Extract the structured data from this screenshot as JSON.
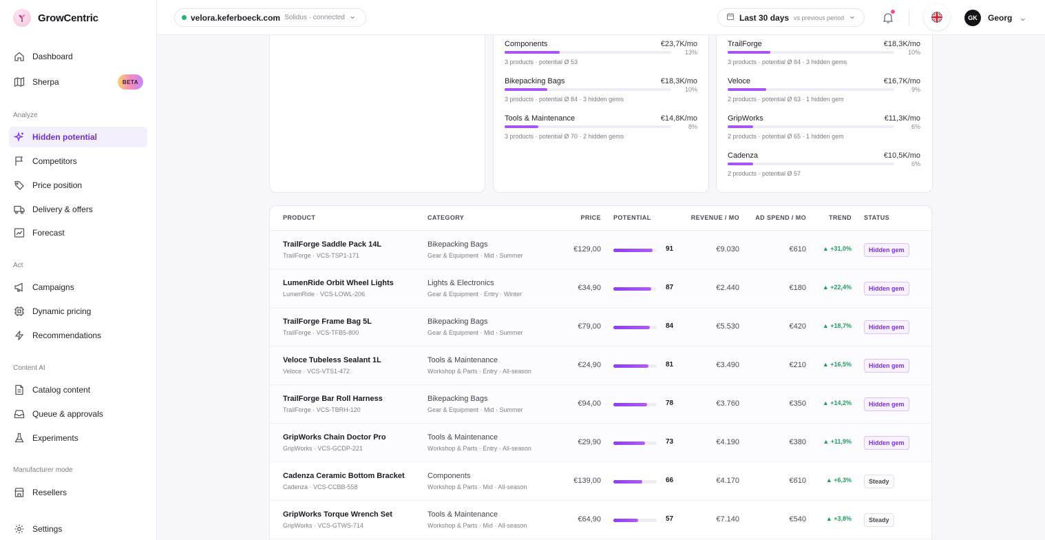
{
  "app": {
    "name": "GrowCentric"
  },
  "nav": {
    "dashboard": "Dashboard",
    "sherpa": "Sherpa",
    "beta": "BETA",
    "analyze": "Analyze",
    "hidden_potential": "Hidden potential",
    "competitors": "Competitors",
    "price_position": "Price position",
    "delivery": "Delivery & offers",
    "forecast": "Forecast",
    "act": "Act",
    "campaigns": "Campaigns",
    "dynamic_pricing": "Dynamic pricing",
    "recommendations": "Recommendations",
    "content_ai": "Content AI",
    "catalog": "Catalog content",
    "queue": "Queue & approvals",
    "experiments": "Experiments",
    "manufacturer": "Manufacturer mode",
    "resellers": "Resellers",
    "settings": "Settings"
  },
  "topbar": {
    "store": "velora.keferboeck.com",
    "store_meta": "Solidus · connected",
    "date_range": "Last 30 days",
    "date_compare": "vs previous period",
    "avatar_initials": "GK",
    "user_name": "Georg"
  },
  "categories_panel": [
    {
      "name": "Components",
      "value": "€23,7K/mo",
      "pct": "13%",
      "fill": 0.13,
      "sub": "3 products · potential Ø 53"
    },
    {
      "name": "Bikepacking Bags",
      "value": "€18,3K/mo",
      "pct": "10%",
      "fill": 0.1,
      "sub": "3 products · potential Ø 84 · 3 hidden gems"
    },
    {
      "name": "Tools & Maintenance",
      "value": "€14,8K/mo",
      "pct": "8%",
      "fill": 0.08,
      "sub": "3 products · potential Ø 70 · 2 hidden gems"
    }
  ],
  "brands_panel": [
    {
      "name": "TrailForge",
      "value": "€18,3K/mo",
      "pct": "10%",
      "fill": 0.1,
      "sub": "3 products · potential Ø 84 · 3 hidden gems"
    },
    {
      "name": "Veloce",
      "value": "€16,7K/mo",
      "pct": "9%",
      "fill": 0.09,
      "sub": "2 products · potential Ø 63 · 1 hidden gem"
    },
    {
      "name": "GripWorks",
      "value": "€11,3K/mo",
      "pct": "6%",
      "fill": 0.06,
      "sub": "2 products · potential Ø 65 · 1 hidden gem"
    },
    {
      "name": "Cadenza",
      "value": "€10,5K/mo",
      "pct": "6%",
      "fill": 0.06,
      "sub": "2 products · potential Ø 57"
    }
  ],
  "table": {
    "headers": {
      "product": "PRODUCT",
      "category": "CATEGORY",
      "price": "PRICE",
      "potential": "POTENTIAL",
      "revenue": "REVENUE / MO",
      "ad_spend": "AD SPEND / MO",
      "trend": "TREND",
      "status": "STATUS"
    },
    "rows": [
      {
        "name": "TrailForge Saddle Pack 14L",
        "sku": "TrailForge · VCS-TSP1-171",
        "category": "Bikepacking Bags",
        "cat_sub": "Gear & Equipment · Mid · Summer",
        "price": "€129,00",
        "potential": 91,
        "revenue": "€9.030",
        "ad": "€610",
        "trend": "▲ +31,0%",
        "status": "Hidden gem",
        "kind": "gem"
      },
      {
        "name": "LumenRide Orbit Wheel Lights",
        "sku": "LumenRide · VCS-LOWL-206",
        "category": "Lights & Electronics",
        "cat_sub": "Gear & Equipment · Entry · Winter",
        "price": "€34,90",
        "potential": 87,
        "revenue": "€2.440",
        "ad": "€180",
        "trend": "▲ +22,4%",
        "status": "Hidden gem",
        "kind": "gem"
      },
      {
        "name": "TrailForge Frame Bag 5L",
        "sku": "TrailForge · VCS-TFB5-800",
        "category": "Bikepacking Bags",
        "cat_sub": "Gear & Equipment · Mid · Summer",
        "price": "€79,00",
        "potential": 84,
        "revenue": "€5.530",
        "ad": "€420",
        "trend": "▲ +18,7%",
        "status": "Hidden gem",
        "kind": "gem"
      },
      {
        "name": "Veloce Tubeless Sealant 1L",
        "sku": "Veloce · VCS-VTS1-472",
        "category": "Tools & Maintenance",
        "cat_sub": "Workshop & Parts · Entry · All-season",
        "price": "€24,90",
        "potential": 81,
        "revenue": "€3.490",
        "ad": "€210",
        "trend": "▲ +16,5%",
        "status": "Hidden gem",
        "kind": "gem"
      },
      {
        "name": "TrailForge Bar Roll Harness",
        "sku": "TrailForge · VCS-TBRH-120",
        "category": "Bikepacking Bags",
        "cat_sub": "Gear & Equipment · Mid · Summer",
        "price": "€94,00",
        "potential": 78,
        "revenue": "€3.760",
        "ad": "€350",
        "trend": "▲ +14,2%",
        "status": "Hidden gem",
        "kind": "gem"
      },
      {
        "name": "GripWorks Chain Doctor Pro",
        "sku": "GripWorks · VCS-GCDP-221",
        "category": "Tools & Maintenance",
        "cat_sub": "Workshop & Parts · Entry · All-season",
        "price": "€29,90",
        "potential": 73,
        "revenue": "€4.190",
        "ad": "€380",
        "trend": "▲ +11,9%",
        "status": "Hidden gem",
        "kind": "gem"
      },
      {
        "name": "Cadenza Ceramic Bottom Bracket",
        "sku": "Cadenza · VCS-CCBB-558",
        "category": "Components",
        "cat_sub": "Workshop & Parts · Mid · All-season",
        "price": "€139,00",
        "potential": 66,
        "revenue": "€4.170",
        "ad": "€610",
        "trend": "▲ +6,3%",
        "status": "Steady",
        "kind": "steady"
      },
      {
        "name": "GripWorks Torque Wrench Set",
        "sku": "GripWorks · VCS-GTWS-714",
        "category": "Tools & Maintenance",
        "cat_sub": "Workshop & Parts · Mid · All-season",
        "price": "€64,90",
        "potential": 57,
        "revenue": "€7.140",
        "ad": "€540",
        "trend": "▲ +3,8%",
        "status": "Steady",
        "kind": "steady"
      }
    ]
  },
  "colors": {
    "accent": "#7c3aed",
    "trend_up": "#1f9d5c",
    "online": "#22b573"
  }
}
